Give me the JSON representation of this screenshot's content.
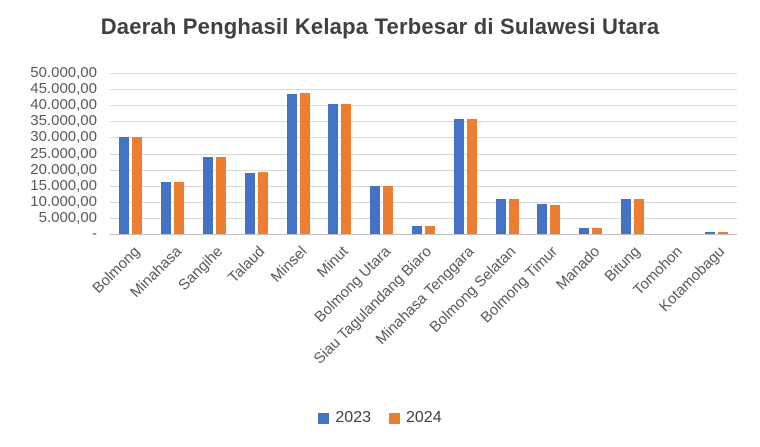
{
  "chart_data": {
    "type": "bar",
    "title": "Daerah Penghasil Kelapa Terbesar di Sulawesi Utara",
    "categories": [
      "Bolmong",
      "Minahasa",
      "Sangihe",
      "Talaud",
      "Minsel",
      "Minut",
      "Bolmong Utara",
      "Siau Tagulandang Biaro",
      "Minahasa Tenggara",
      "Bolmong Selatan",
      "Bolmong Timur",
      "Manado",
      "Bitung",
      "Tomohon",
      "Kotamobagu"
    ],
    "series": [
      {
        "name": "2023",
        "color": "#4472C4",
        "values": [
          30000,
          16200,
          24000,
          19000,
          43500,
          40500,
          15000,
          2600,
          35700,
          10800,
          9400,
          2000,
          11000,
          0,
          500
        ]
      },
      {
        "name": "2024",
        "color": "#ED7D31",
        "values": [
          30000,
          16200,
          24000,
          19100,
          43700,
          40400,
          15000,
          2600,
          35800,
          10800,
          9100,
          2000,
          11000,
          0,
          600
        ]
      }
    ],
    "y_axis": {
      "min": 0,
      "max": 50000,
      "step": 5000,
      "tick_labels_top_to_bottom": [
        "50.000,00",
        "45.000,00",
        "40.000,00",
        "35.000,00",
        "30.000,00",
        "25.000,00",
        "20.000,00",
        "15.000,00",
        "10.000,00",
        "5.000,00",
        "-"
      ]
    },
    "legend": {
      "entries": [
        "2023",
        "2024"
      ],
      "position": "bottom"
    },
    "grid": true
  },
  "colors": {
    "series_2023": "#4472C4",
    "series_2024": "#ED7D31",
    "gridline": "#D9D9D9",
    "axis_line": "#BFBFBF",
    "tick_text": "#595959",
    "title_text": "#404040",
    "background": "#FFFFFF"
  }
}
